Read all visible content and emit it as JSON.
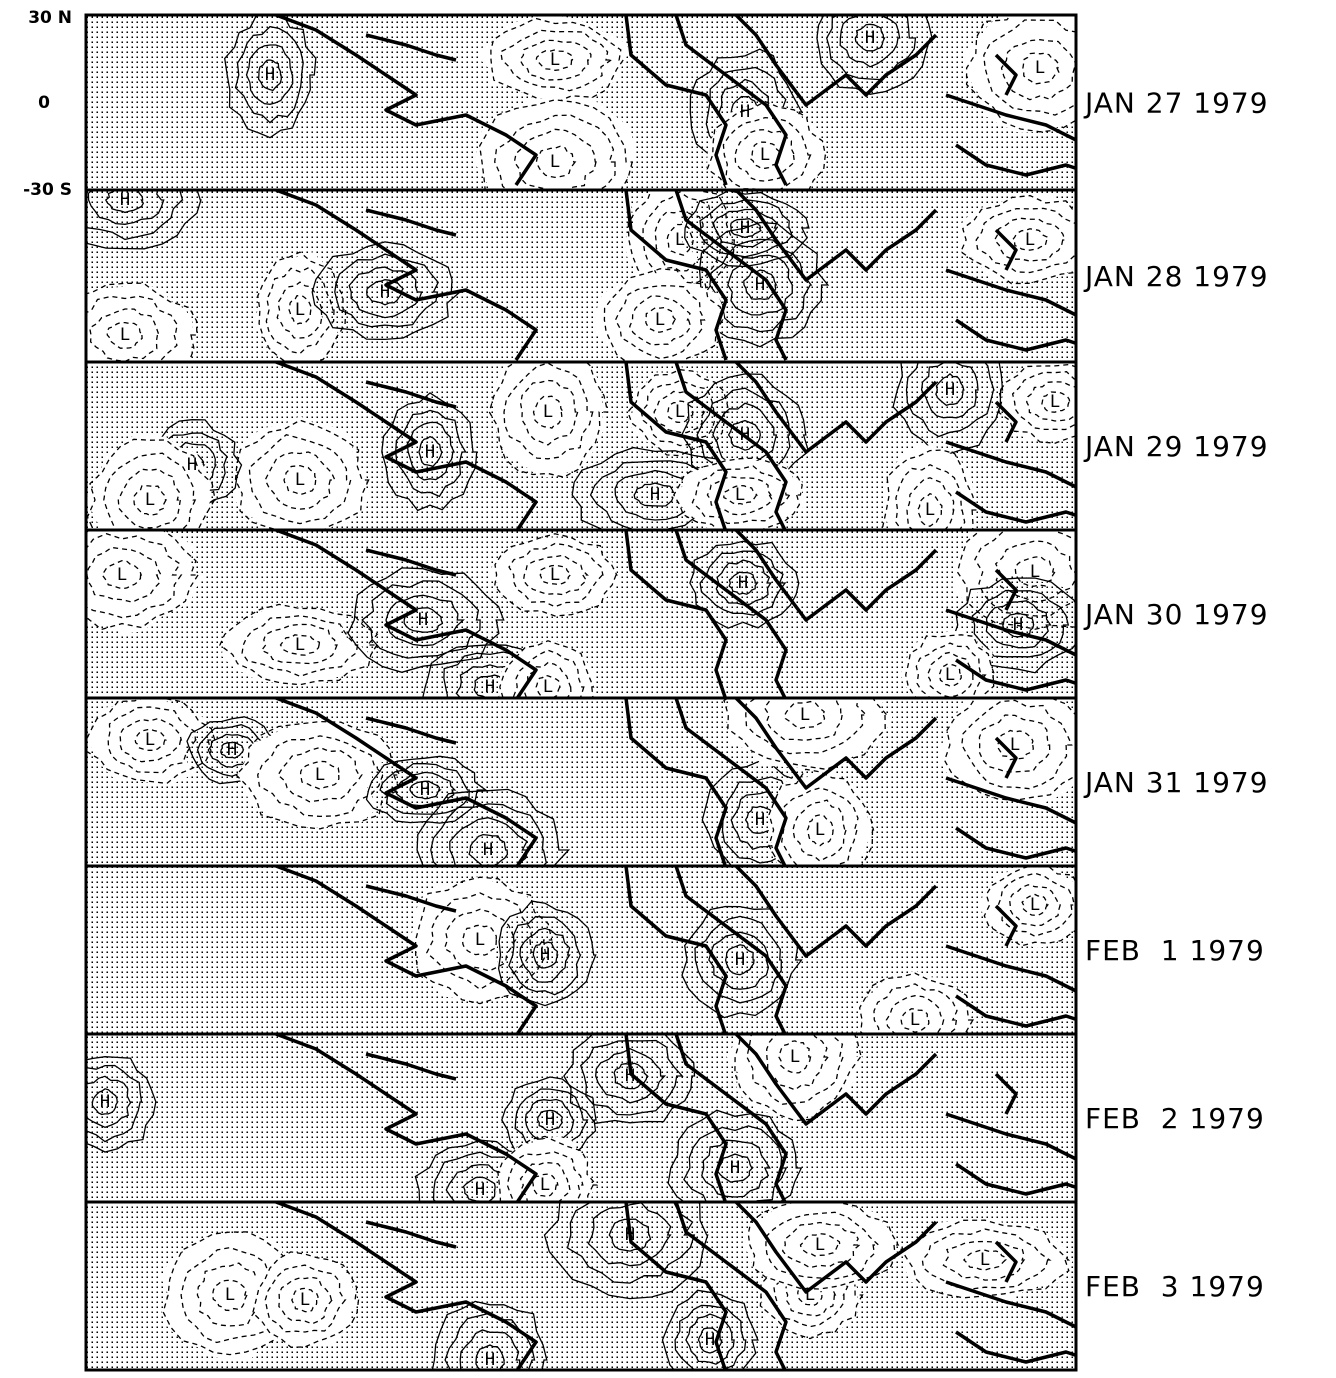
{
  "latitude_labels": [
    "30 N",
    "0",
    "-30 S"
  ],
  "panels": [
    {
      "date": "JAN 27 1979",
      "labels": [
        "H",
        "L",
        "H",
        "L",
        "L",
        "L",
        "H"
      ]
    },
    {
      "date": "JAN 28 1979",
      "labels": [
        "H",
        "L",
        "H",
        "L",
        "L",
        "H",
        "H",
        "L",
        "L"
      ]
    },
    {
      "date": "JAN 29 1979",
      "labels": [
        "L",
        "H",
        "L",
        "L",
        "H",
        "L",
        "H",
        "H",
        "L",
        "H",
        "L",
        "L"
      ]
    },
    {
      "date": "JAN 30 1979",
      "labels": [
        "L",
        "L",
        "H",
        "H",
        "L",
        "L",
        "H",
        "H",
        "L",
        "L"
      ]
    },
    {
      "date": "JAN 31 1979",
      "labels": [
        "L",
        "H",
        "L",
        "H",
        "H",
        "H",
        "L",
        "L",
        "L"
      ]
    },
    {
      "date": "FEB  1 1979",
      "labels": [
        "L",
        "H",
        "H",
        "L",
        "L"
      ]
    },
    {
      "date": "FEB  2 1979",
      "labels": [
        "H",
        "H",
        "H",
        "H",
        "H",
        "L",
        "L"
      ]
    },
    {
      "date": "FEB  3 1979",
      "labels": [
        "H",
        "L",
        "L",
        "L",
        "L",
        "L",
        "H",
        "H"
      ]
    }
  ]
}
